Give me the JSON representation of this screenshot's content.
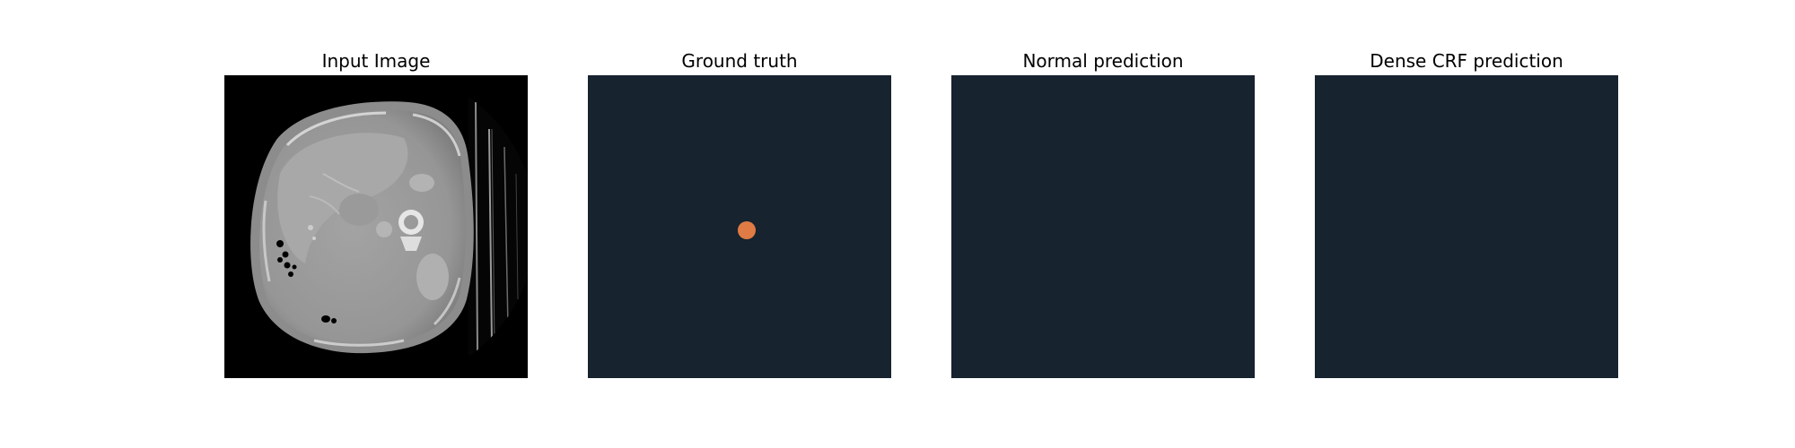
{
  "figure": {
    "panels": [
      {
        "title": "Input Image",
        "kind": "ct-scan"
      },
      {
        "title": "Ground truth",
        "kind": "mask",
        "background_color": "#17232f",
        "lesion_color": "#e07b45"
      },
      {
        "title": "Normal prediction",
        "kind": "mask",
        "background_color": "#17232f"
      },
      {
        "title": "Dense CRF prediction",
        "kind": "mask",
        "background_color": "#17232f"
      }
    ]
  }
}
